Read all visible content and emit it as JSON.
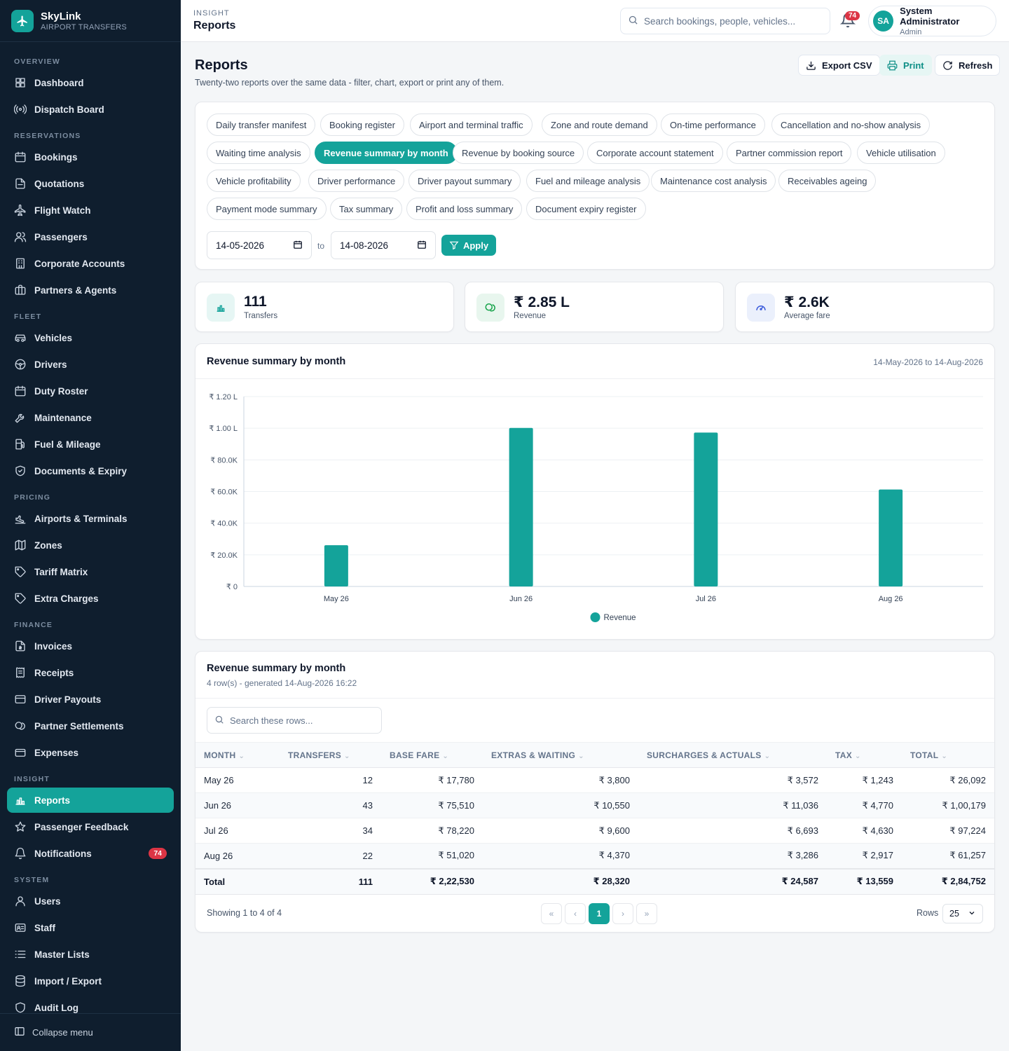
{
  "brand": {
    "name": "SkyLink",
    "sub": "AIRPORT TRANSFERS"
  },
  "sidebar": {
    "sections": [
      {
        "title": "OVERVIEW",
        "items": [
          {
            "label": "Dashboard",
            "icon": "grid-icon"
          },
          {
            "label": "Dispatch Board",
            "icon": "broadcast-icon"
          }
        ]
      },
      {
        "title": "RESERVATIONS",
        "items": [
          {
            "label": "Bookings",
            "icon": "calendar-icon"
          },
          {
            "label": "Quotations",
            "icon": "document-icon"
          },
          {
            "label": "Flight Watch",
            "icon": "plane-icon"
          },
          {
            "label": "Passengers",
            "icon": "users-icon"
          },
          {
            "label": "Corporate Accounts",
            "icon": "building-icon"
          },
          {
            "label": "Partners & Agents",
            "icon": "briefcase-icon"
          }
        ]
      },
      {
        "title": "FLEET",
        "items": [
          {
            "label": "Vehicles",
            "icon": "car-icon"
          },
          {
            "label": "Drivers",
            "icon": "steering-wheel-icon"
          },
          {
            "label": "Duty Roster",
            "icon": "calendar-icon"
          },
          {
            "label": "Maintenance",
            "icon": "wrench-icon"
          },
          {
            "label": "Fuel & Mileage",
            "icon": "fuel-icon"
          },
          {
            "label": "Documents & Expiry",
            "icon": "shield-icon"
          }
        ]
      },
      {
        "title": "PRICING",
        "items": [
          {
            "label": "Airports & Terminals",
            "icon": "plane-landing-icon"
          },
          {
            "label": "Zones",
            "icon": "map-icon"
          },
          {
            "label": "Tariff Matrix",
            "icon": "tag-icon"
          },
          {
            "label": "Extra Charges",
            "icon": "tag-icon"
          }
        ]
      },
      {
        "title": "FINANCE",
        "items": [
          {
            "label": "Invoices",
            "icon": "invoice-icon"
          },
          {
            "label": "Receipts",
            "icon": "receipt-icon"
          },
          {
            "label": "Driver Payouts",
            "icon": "card-icon"
          },
          {
            "label": "Partner Settlements",
            "icon": "coins-icon"
          },
          {
            "label": "Expenses",
            "icon": "wallet-icon"
          }
        ]
      },
      {
        "title": "INSIGHT",
        "items": [
          {
            "label": "Reports",
            "icon": "bar-chart-icon",
            "active": true
          },
          {
            "label": "Passenger Feedback",
            "icon": "star-icon"
          },
          {
            "label": "Notifications",
            "icon": "bell-icon",
            "badge": "74"
          }
        ]
      },
      {
        "title": "SYSTEM",
        "items": [
          {
            "label": "Users",
            "icon": "user-icon"
          },
          {
            "label": "Staff",
            "icon": "id-card-icon"
          },
          {
            "label": "Master Lists",
            "icon": "list-icon"
          },
          {
            "label": "Import / Export",
            "icon": "database-icon"
          },
          {
            "label": "Audit Log",
            "icon": "audit-icon"
          }
        ]
      }
    ],
    "collapse_label": "Collapse menu"
  },
  "topbar": {
    "section": "INSIGHT",
    "title": "Reports",
    "search_placeholder": "Search bookings, people, vehicles...",
    "notification_count": "74",
    "user": {
      "initials": "SA",
      "name": "System Administrator",
      "role": "Admin"
    }
  },
  "page": {
    "title": "Reports",
    "subtitle": "Twenty-two reports over the same data - filter, chart, export or print any of them.",
    "actions": {
      "export": "Export CSV",
      "print": "Print",
      "refresh": "Refresh"
    }
  },
  "reports": [
    "Daily transfer manifest",
    "Booking register",
    "Airport and terminal traffic",
    "Zone and route demand",
    "On-time performance",
    "Cancellation and no-show analysis",
    "Waiting time analysis",
    "Revenue summary by month",
    "Revenue by booking source",
    "Corporate account statement",
    "Partner commission report",
    "Vehicle utilisation",
    "Vehicle profitability",
    "Driver performance",
    "Driver payout summary",
    "Fuel and mileage analysis",
    "Maintenance cost analysis",
    "Receivables ageing",
    "Payment mode summary",
    "Tax summary",
    "Profit and loss summary",
    "Document expiry register"
  ],
  "active_report": "Revenue summary by month",
  "filters": {
    "from": "14-05-2026",
    "to_label": "to",
    "to": "14-08-2026",
    "apply": "Apply"
  },
  "kpis": [
    {
      "value": "111",
      "label": "Transfers",
      "icon": "bar-chart-icon",
      "color": "#14a39a"
    },
    {
      "value": "₹ 2.85 L",
      "label": "Revenue",
      "icon": "coins-icon",
      "color": "#16a34a"
    },
    {
      "value": "₹ 2.6K",
      "label": "Average fare",
      "icon": "gauge-icon",
      "color": "#3b5bdb"
    }
  ],
  "chart_card": {
    "title": "Revenue summary by month",
    "range": "14-May-2026 to 14-Aug-2026"
  },
  "chart_data": {
    "type": "bar",
    "categories": [
      "May 26",
      "Jun 26",
      "Jul 26",
      "Aug 26"
    ],
    "series": [
      {
        "name": "Revenue",
        "values": [
          26092,
          100179,
          97224,
          61257
        ],
        "color": "#14a39a"
      }
    ],
    "ylim": [
      0,
      120000
    ],
    "yticks": [
      0,
      20000,
      40000,
      60000,
      80000,
      100000,
      120000
    ],
    "ytick_labels": [
      "₹ 0",
      "₹ 20.0K",
      "₹ 40.0K",
      "₹ 60.0K",
      "₹ 80.0K",
      "₹ 1.00 L",
      "₹ 1.20 L"
    ],
    "grid": true,
    "legend": "bottom-center"
  },
  "table": {
    "title": "Revenue summary by month",
    "meta": "4 row(s) - generated 14-Aug-2026 16:22",
    "search_placeholder": "Search these rows...",
    "columns": [
      "MONTH",
      "TRANSFERS",
      "BASE FARE",
      "EXTRAS & WAITING",
      "SURCHARGES & ACTUALS",
      "TAX",
      "TOTAL"
    ],
    "rows": [
      [
        "May 26",
        "12",
        "₹ 17,780",
        "₹ 3,800",
        "₹ 3,572",
        "₹ 1,243",
        "₹ 26,092"
      ],
      [
        "Jun 26",
        "43",
        "₹ 75,510",
        "₹ 10,550",
        "₹ 11,036",
        "₹ 4,770",
        "₹ 1,00,179"
      ],
      [
        "Jul 26",
        "34",
        "₹ 78,220",
        "₹ 9,600",
        "₹ 6,693",
        "₹ 4,630",
        "₹ 97,224"
      ],
      [
        "Aug 26",
        "22",
        "₹ 51,020",
        "₹ 4,370",
        "₹ 3,286",
        "₹ 2,917",
        "₹ 61,257"
      ]
    ],
    "totals": [
      "Total",
      "111",
      "₹ 2,22,530",
      "₹ 28,320",
      "₹ 24,587",
      "₹ 13,559",
      "₹ 2,84,752"
    ],
    "showing": "Showing 1 to 4 of 4",
    "pager": {
      "first": "«",
      "prev": "‹",
      "current": "1",
      "next": "›",
      "last": "»"
    },
    "rows_label": "Rows",
    "rows_value": "25"
  }
}
